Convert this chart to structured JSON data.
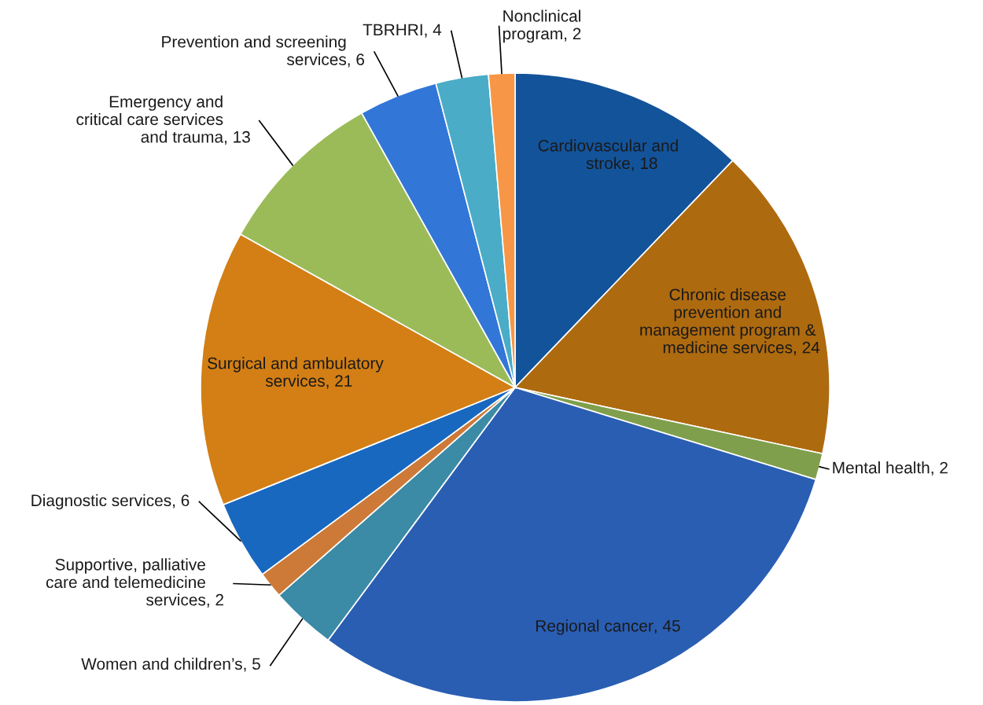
{
  "chart_data": {
    "type": "pie",
    "categories": [
      "Cardiovascular and\nstroke",
      "Chronic disease\nprevention and\nmanagement program &\nmedicine services",
      "Mental health",
      "Regional cancer",
      "Women and children’s",
      "Supportive, palliative\ncare and telemedicine\nservices",
      "Diagnostic services",
      "Surgical and ambulatory\nservices",
      "Emergency and\ncritical care services\nand trauma",
      "Prevention and screening\nservices",
      "TBRHRI",
      "Nonclinical\nprogram"
    ],
    "values": [
      18,
      24,
      2,
      45,
      5,
      2,
      6,
      21,
      13,
      6,
      4,
      2
    ],
    "colors": [
      "#13539a",
      "#ae6a0f",
      "#7f9f4c",
      "#2a5eb3",
      "#3b8aa6",
      "#cd7a38",
      "#1868c0",
      "#d37f15",
      "#9bbb59",
      "#3276d8",
      "#4aacc6",
      "#f79646"
    ],
    "value_labels": [
      ", 18",
      ", 24",
      ", 2",
      ", 45",
      ", 5",
      ", 2",
      ", 6",
      ", 21",
      ", 13",
      ", 6",
      ", 4",
      ", 2"
    ]
  }
}
